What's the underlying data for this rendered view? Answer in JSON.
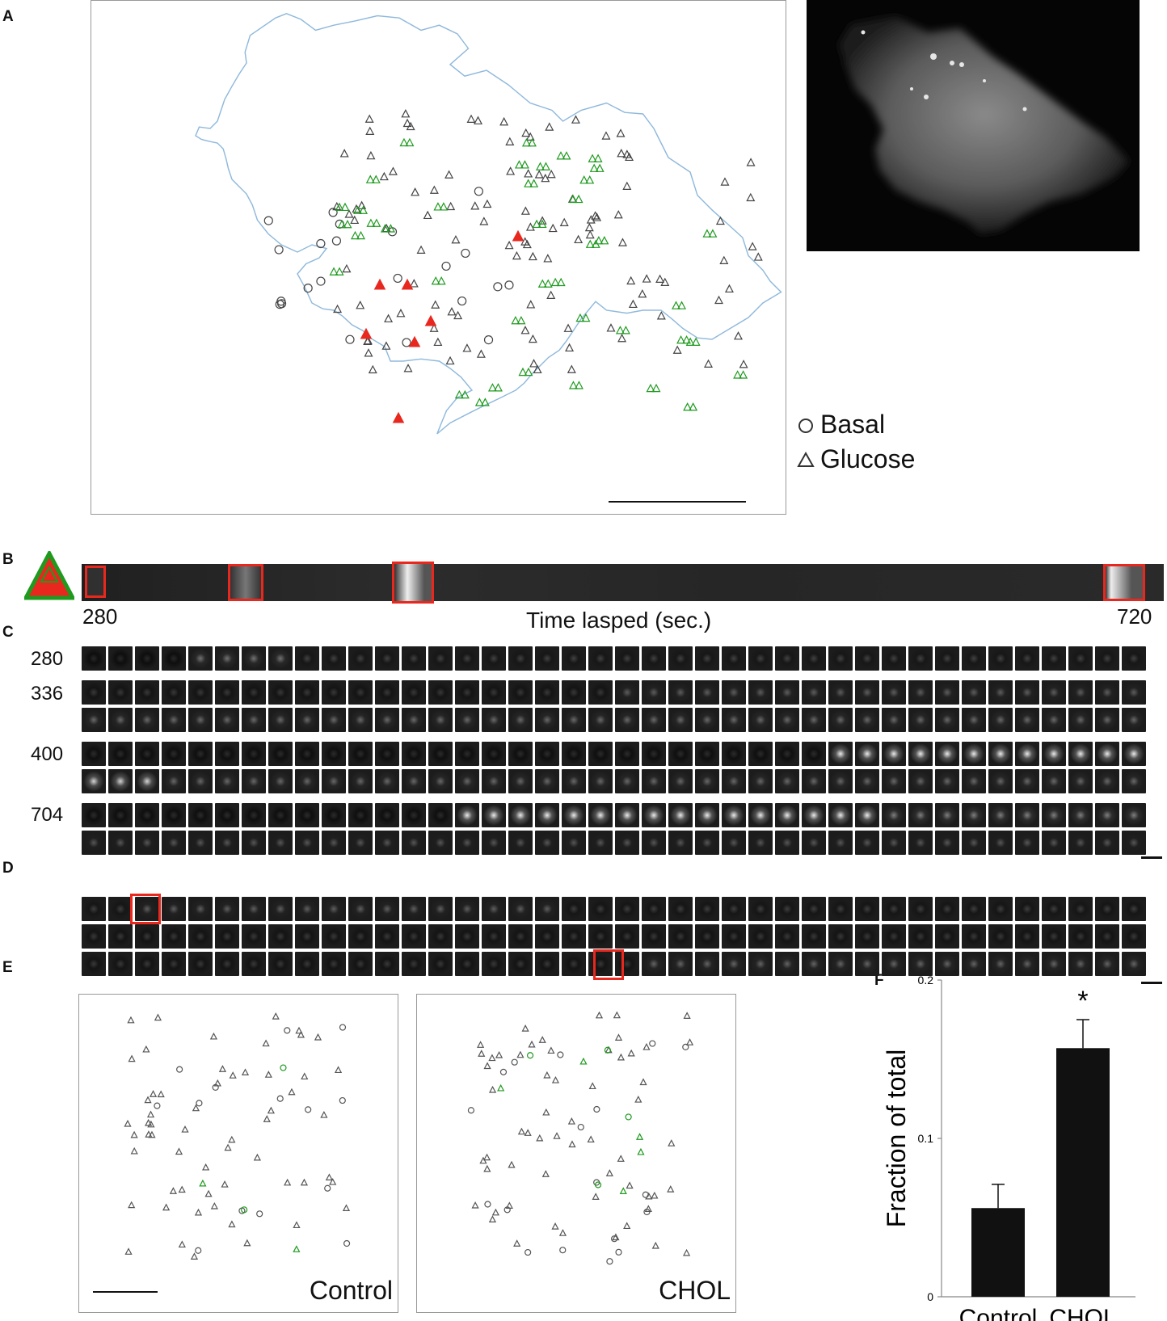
{
  "panels": {
    "A": {
      "label": "A",
      "legend": [
        {
          "symbol": "circle",
          "text": "Basal"
        },
        {
          "symbol": "triangle",
          "text": "Glucose"
        }
      ]
    },
    "B": {
      "label": "B",
      "time_start": "280",
      "time_end": "720",
      "axis_label": "Time lasped (sec.)"
    },
    "C": {
      "label": "C",
      "rows": [
        "280",
        "336",
        "400",
        "704"
      ]
    },
    "D": {
      "label": "D"
    },
    "E": {
      "label": "E",
      "conditions": [
        "Control",
        "CHOL"
      ]
    },
    "F": {
      "label": "F"
    }
  },
  "chart_data": {
    "type": "bar",
    "categories": [
      "Control",
      "CHOL"
    ],
    "values": [
      0.056,
      0.157
    ],
    "errors": [
      0.015,
      0.018
    ],
    "ylabel": "Fraction of total",
    "ylim": [
      0,
      0.2
    ],
    "yticks": [
      "0",
      "0.1",
      "0.2"
    ],
    "significance": [
      "",
      "*"
    ],
    "bar_color": "#111111"
  },
  "colors": {
    "outline": "#8fb9dc",
    "glucose_green": "#1f9a1f",
    "fusion_red": "#e8281e",
    "symbol_gray": "#444444"
  }
}
